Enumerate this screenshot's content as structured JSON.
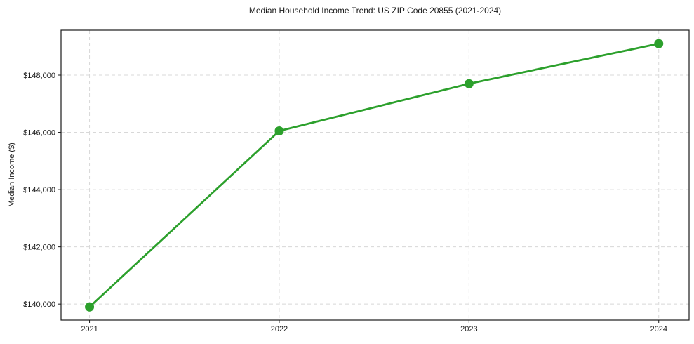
{
  "figure": {
    "title": "Median Household Income Trend: US ZIP Code 20855 (2021-2024)",
    "y_axis_label": "Median Income ($)"
  },
  "chart_data": {
    "type": "line",
    "title": "Median Household Income Trend: US ZIP Code 20855 (2021-2024)",
    "xlabel": "",
    "ylabel": "Median Income ($)",
    "x": [
      2021,
      2022,
      2023,
      2024
    ],
    "x_tick_labels": [
      "2021",
      "2022",
      "2023",
      "2024"
    ],
    "values": [
      139900,
      146050,
      147700,
      149100
    ],
    "y_ticks": [
      140000,
      142000,
      144000,
      146000,
      148000
    ],
    "y_tick_labels": [
      "$140,000",
      "$142,000",
      "$144,000",
      "$146,000",
      "$148,000"
    ],
    "ylim": [
      139440,
      149570
    ],
    "xlim": [
      2020.85,
      2024.16
    ],
    "grid": true,
    "grid_linestyle": "dashed",
    "legend": "none",
    "marker": "circle",
    "line_color": "#2ca02c",
    "colors": {
      "grid": "#d8d8d8",
      "spine": "#1a1a1a",
      "text": "#1a1a1a",
      "background": "#ffffff"
    }
  }
}
